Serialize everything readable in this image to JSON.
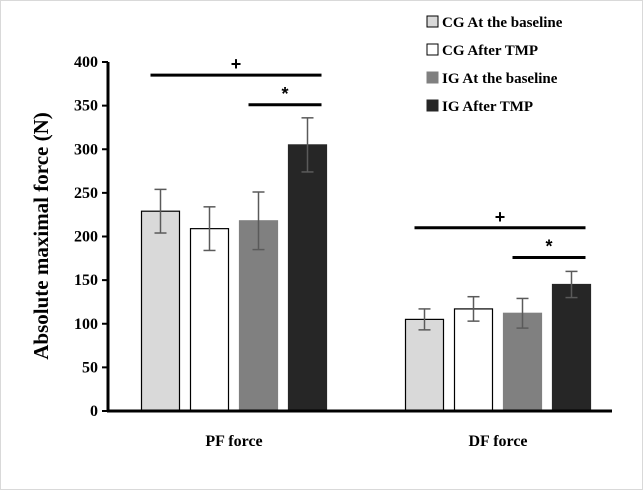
{
  "chart_data": {
    "type": "bar",
    "title": "",
    "xlabel": "",
    "ylabel": "Absolute maximal force (N)",
    "ylim": [
      0,
      400
    ],
    "yticks": [
      0,
      50,
      100,
      150,
      200,
      250,
      300,
      350,
      400
    ],
    "categories": [
      "PF force",
      "DF force"
    ],
    "grid": false,
    "legend_position": "top-right",
    "series": [
      {
        "name": "CG At the baseline",
        "values": [
          229,
          105
        ],
        "errors": [
          25,
          12
        ],
        "fill": "#d9d9d9",
        "stroke": "#000000"
      },
      {
        "name": "CG After TMP",
        "values": [
          209,
          117
        ],
        "errors": [
          25,
          14
        ],
        "fill": "#ffffff",
        "stroke": "#000000"
      },
      {
        "name": "IG At the baseline",
        "values": [
          218,
          112
        ],
        "errors": [
          33,
          17
        ],
        "fill": "#808080",
        "stroke": "#808080"
      },
      {
        "name": "IG After TMP",
        "values": [
          305,
          145
        ],
        "errors": [
          31,
          15
        ],
        "fill": "#262626",
        "stroke": "#262626"
      }
    ],
    "annotations": [
      {
        "symbol": "+",
        "category": "PF force",
        "from_series": 0,
        "to_series": 3,
        "y": 385
      },
      {
        "symbol": "*",
        "category": "PF force",
        "from_series": 2,
        "to_series": 3,
        "y": 351
      },
      {
        "symbol": "+",
        "category": "DF force",
        "from_series": 0,
        "to_series": 3,
        "y": 210
      },
      {
        "symbol": "*",
        "category": "DF force",
        "from_series": 2,
        "to_series": 3,
        "y": 176
      }
    ]
  }
}
